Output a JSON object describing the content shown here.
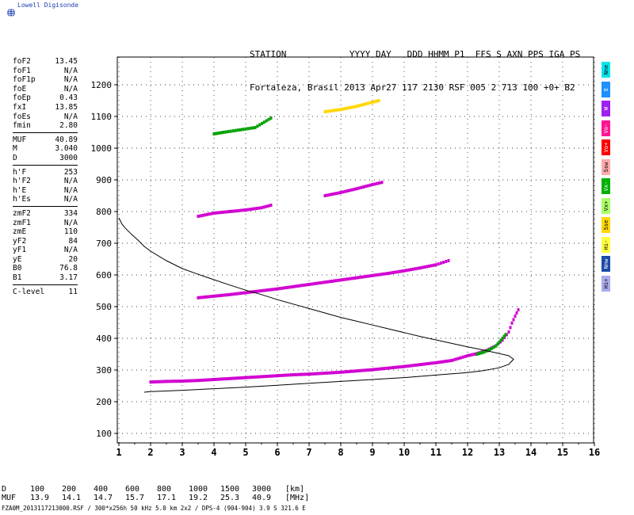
{
  "brand": {
    "name": "Lowell Digisonde",
    "logo": "globe-icon"
  },
  "station_header": {
    "line1": "STATION            YYYY DAY   DDD HHMM P1  FFS S AXN PPS IGA PS",
    "line2": "Fortaleza, Brasil 2013 Apr27 117 2130 RSF 005 2 713 100 +0+ B2"
  },
  "params": [
    [
      [
        "foF2",
        "13.45"
      ],
      [
        "foF1",
        "N/A"
      ],
      [
        "foF1p",
        "N/A"
      ],
      [
        "foE",
        "N/A"
      ],
      [
        "foEp",
        "0.43"
      ],
      [
        "fxI",
        "13.85"
      ],
      [
        "foEs",
        "N/A"
      ],
      [
        "fmin",
        "2.80"
      ]
    ],
    [
      [
        "MUF",
        "40.89"
      ],
      [
        "M",
        "3.040"
      ],
      [
        "D",
        "3000"
      ]
    ],
    [
      [
        "h'F",
        "253"
      ],
      [
        "h'F2",
        "N/A"
      ],
      [
        "h'E",
        "N/A"
      ],
      [
        "h'Es",
        "N/A"
      ]
    ],
    [
      [
        "zmF2",
        "334"
      ],
      [
        "zmF1",
        "N/A"
      ],
      [
        "zmE",
        "110"
      ],
      [
        "yF2",
        "84"
      ],
      [
        "yF1",
        "N/A"
      ],
      [
        "yE",
        "20"
      ],
      [
        "B0",
        "76.8"
      ],
      [
        "B1",
        "3.17"
      ]
    ],
    [
      [
        "C-level",
        "11"
      ]
    ]
  ],
  "legend": [
    {
      "label": "Nne",
      "color": "#00e5ee"
    },
    {
      "label": "E",
      "color": "#1e90ff"
    },
    {
      "label": "W",
      "color": "#a020f0"
    },
    {
      "label": "Vo-",
      "color": "#ff1493"
    },
    {
      "label": "Vo+",
      "color": "#ff0000"
    },
    {
      "label": "Ssw",
      "color": "#ffaaaa"
    },
    {
      "label": "Vx-",
      "color": "#00b000"
    },
    {
      "label": "Vx+",
      "color": "#aaff66"
    },
    {
      "label": "Sse",
      "color": "#ffd700"
    },
    {
      "label": "Hi-",
      "color": "#ffff40"
    },
    {
      "label": "Nnw",
      "color": "#1a4ba8"
    },
    {
      "label": "Hi+",
      "color": "#aaaaee"
    }
  ],
  "muf_table": {
    "d_label": "D",
    "muf_label": "MUF",
    "distances": [
      "100",
      "200",
      "400",
      "600",
      "800",
      "1000",
      "1500",
      "3000"
    ],
    "mufs": [
      "13.9",
      "14.1",
      "14.7",
      "15.7",
      "17.1",
      "19.2",
      "25.3",
      "40.9"
    ],
    "d_unit": "[km]",
    "muf_unit": "[MHz]"
  },
  "footer": "FZA0M_2013117213000.RSF / 300*x256h 50 kHz 5.0 km 2x2 / DPS-4 (904-904)  3.9 S 321.6 E",
  "chart_data": {
    "type": "scatter",
    "title": "",
    "xlabel": "",
    "ylabel": "",
    "xlim": [
      1,
      16
    ],
    "ylim": [
      50,
      1300
    ],
    "x_ticks": [
      1,
      2,
      3,
      4,
      5,
      6,
      7,
      8,
      9,
      10,
      11,
      12,
      13,
      14,
      15,
      16
    ],
    "y_ticks": [
      100,
      200,
      300,
      400,
      500,
      600,
      700,
      800,
      900,
      1000,
      1100,
      1200
    ],
    "grid": true,
    "profile_curve": [
      [
        1.0,
        780
      ],
      [
        1.1,
        760
      ],
      [
        1.2,
        748
      ],
      [
        1.4,
        728
      ],
      [
        1.6,
        710
      ],
      [
        1.8,
        690
      ],
      [
        2.0,
        675
      ],
      [
        2.5,
        645
      ],
      [
        3.0,
        620
      ],
      [
        3.5,
        602
      ],
      [
        4.0,
        585
      ],
      [
        4.5,
        568
      ],
      [
        5.0,
        552
      ],
      [
        5.5,
        538
      ],
      [
        6.0,
        522
      ],
      [
        6.5,
        508
      ],
      [
        7.0,
        494
      ],
      [
        7.5,
        480
      ],
      [
        8.0,
        466
      ],
      [
        8.5,
        454
      ],
      [
        9.0,
        442
      ],
      [
        9.5,
        430
      ],
      [
        10.0,
        418
      ],
      [
        10.5,
        406
      ],
      [
        11.0,
        395
      ],
      [
        11.5,
        384
      ],
      [
        12.0,
        373
      ],
      [
        12.5,
        363
      ],
      [
        13.0,
        352
      ],
      [
        13.3,
        345
      ],
      [
        13.45,
        334
      ],
      [
        13.3,
        318
      ],
      [
        13.0,
        307
      ],
      [
        12.5,
        298
      ],
      [
        12.0,
        292
      ],
      [
        11.0,
        284
      ],
      [
        10.0,
        276
      ],
      [
        9.0,
        270
      ],
      [
        8.0,
        264
      ],
      [
        7.0,
        258
      ],
      [
        6.0,
        252
      ],
      [
        5.0,
        246
      ],
      [
        4.0,
        241
      ],
      [
        3.0,
        236
      ],
      [
        2.0,
        232
      ],
      [
        1.8,
        230
      ]
    ],
    "traces": [
      {
        "name": "O F2 trace",
        "color": "#d100d1",
        "points": [
          [
            2.0,
            262
          ],
          [
            2.5,
            264
          ],
          [
            3.0,
            265
          ],
          [
            3.5,
            267
          ],
          [
            4.0,
            270
          ],
          [
            4.5,
            273
          ],
          [
            5.0,
            276
          ],
          [
            5.5,
            279
          ],
          [
            6.0,
            282
          ],
          [
            6.5,
            285
          ],
          [
            7.0,
            287
          ],
          [
            7.5,
            290
          ],
          [
            8.0,
            293
          ],
          [
            8.5,
            297
          ],
          [
            9.0,
            301
          ],
          [
            9.5,
            306
          ],
          [
            10.0,
            311
          ],
          [
            10.5,
            317
          ],
          [
            11.0,
            323
          ],
          [
            11.5,
            330
          ],
          [
            12.0,
            345
          ],
          [
            12.3,
            352
          ],
          [
            12.6,
            362
          ],
          [
            12.9,
            377
          ],
          [
            13.1,
            394
          ],
          [
            13.3,
            420
          ],
          [
            13.4,
            448
          ],
          [
            13.5,
            470
          ],
          [
            13.6,
            490
          ]
        ]
      },
      {
        "name": "X F2 trace",
        "color": "#00a000",
        "points": [
          [
            12.3,
            350
          ],
          [
            12.5,
            356
          ],
          [
            12.7,
            364
          ],
          [
            12.9,
            376
          ],
          [
            13.0,
            388
          ],
          [
            13.1,
            400
          ],
          [
            13.2,
            412
          ]
        ]
      },
      {
        "name": "2F echo",
        "color": "#d100d1",
        "points": [
          [
            3.5,
            528
          ],
          [
            4.0,
            533
          ],
          [
            4.5,
            538
          ],
          [
            5.0,
            544
          ],
          [
            5.5,
            550
          ],
          [
            6.0,
            556
          ],
          [
            6.5,
            563
          ],
          [
            7.0,
            570
          ],
          [
            7.5,
            577
          ],
          [
            8.0,
            584
          ],
          [
            8.5,
            591
          ],
          [
            9.0,
            598
          ],
          [
            9.5,
            605
          ],
          [
            10.0,
            613
          ],
          [
            10.5,
            622
          ],
          [
            11.0,
            632
          ],
          [
            11.4,
            645
          ]
        ]
      },
      {
        "name": "3F echo",
        "color": "#d100d1",
        "points": [
          [
            3.5,
            785
          ],
          [
            4.0,
            795
          ],
          [
            4.5,
            800
          ],
          [
            5.0,
            805
          ],
          [
            5.5,
            812
          ],
          [
            5.8,
            820
          ]
        ]
      },
      {
        "name": "3F echo 2",
        "color": "#d100d1",
        "points": [
          [
            7.5,
            850
          ],
          [
            8.0,
            860
          ],
          [
            8.5,
            872
          ],
          [
            9.0,
            885
          ],
          [
            9.3,
            892
          ]
        ]
      },
      {
        "name": "4F echo",
        "color": "#ffd700",
        "points": [
          [
            7.5,
            1115
          ],
          [
            8.0,
            1122
          ],
          [
            8.5,
            1132
          ],
          [
            9.0,
            1145
          ],
          [
            9.2,
            1150
          ]
        ]
      },
      {
        "name": "4F echo 2",
        "color": "#00a000",
        "points": [
          [
            4.0,
            1045
          ],
          [
            4.3,
            1050
          ],
          [
            5.3,
            1065
          ],
          [
            5.8,
            1095
          ]
        ]
      }
    ]
  }
}
